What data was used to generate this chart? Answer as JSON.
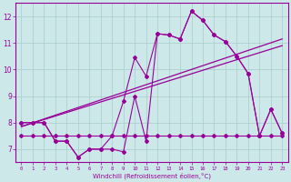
{
  "xlabel": "Windchill (Refroidissement éolien,°C)",
  "background_color": "#cce8e8",
  "grid_color": "#aacccc",
  "line_color": "#990099",
  "x_hours": [
    0,
    1,
    2,
    3,
    4,
    5,
    6,
    7,
    8,
    9,
    10,
    11,
    12,
    13,
    14,
    15,
    16,
    17,
    18,
    19,
    20,
    21,
    22,
    23
  ],
  "line1": [
    8.0,
    8.0,
    8.0,
    7.3,
    7.3,
    6.7,
    7.0,
    7.0,
    7.5,
    8.8,
    10.45,
    9.75,
    11.35,
    11.3,
    11.15,
    12.2,
    11.85,
    11.3,
    11.05,
    10.5,
    9.85,
    7.5,
    8.5,
    7.6
  ],
  "line2": [
    8.0,
    8.0,
    8.0,
    7.3,
    7.3,
    6.7,
    7.0,
    7.0,
    7.0,
    6.9,
    9.0,
    7.3,
    11.35,
    11.3,
    11.15,
    12.2,
    11.85,
    11.3,
    11.05,
    10.5,
    9.85,
    7.5,
    8.5,
    7.6
  ],
  "line3": [
    7.5,
    7.5,
    7.5,
    7.5,
    7.5,
    7.5,
    7.5,
    7.5,
    7.5,
    7.5,
    7.5,
    7.5,
    7.5,
    7.5,
    7.5,
    7.5,
    7.5,
    7.5,
    7.5,
    7.5,
    7.5,
    7.5,
    7.5,
    7.5
  ],
  "trend1_x": [
    0,
    23
  ],
  "trend1_y": [
    7.85,
    10.9
  ],
  "trend2_x": [
    0,
    23
  ],
  "trend2_y": [
    7.85,
    11.15
  ],
  "ylim": [
    6.5,
    12.5
  ],
  "yticks": [
    7,
    8,
    9,
    10,
    11,
    12
  ],
  "xlim": [
    -0.5,
    23.5
  ]
}
